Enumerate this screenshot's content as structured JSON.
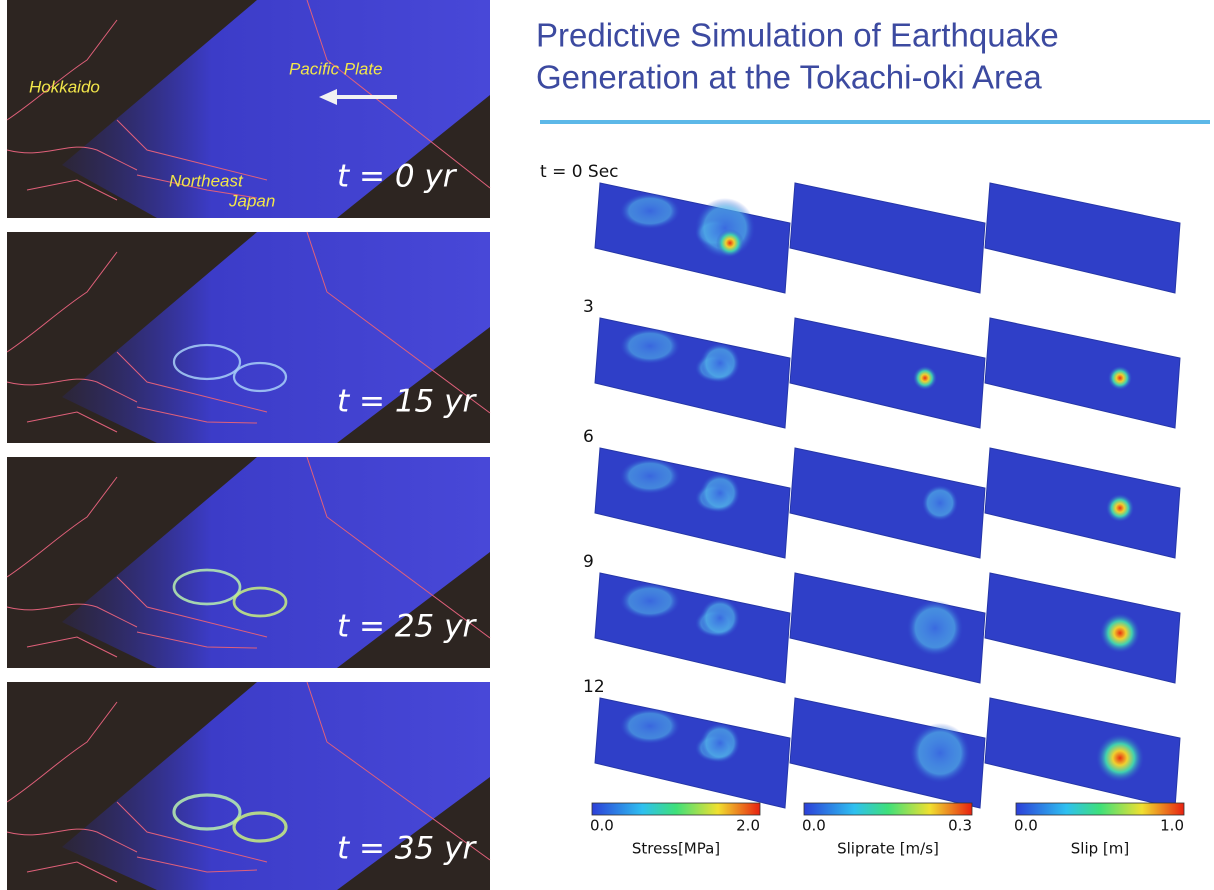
{
  "title": {
    "lines": [
      "Predictive Simulation of Earthquake",
      "Generation at the Tokachi-oki Area"
    ]
  },
  "map_labels": {
    "hokkaido": "Hokkaido",
    "pacific_plate": "Pacific Plate",
    "northeast_japan": [
      "Northeast",
      "Japan"
    ]
  },
  "left_panels": [
    {
      "label": "t = 0 yr"
    },
    {
      "label": "t = 15 yr"
    },
    {
      "label": "t = 25 yr"
    },
    {
      "label": "t = 35 yr"
    }
  ],
  "simulation": {
    "rows": [
      "t = 0 Sec",
      "3",
      "6",
      "9",
      "12"
    ]
  },
  "colorbars": [
    {
      "min": "0.0",
      "max": "2.0",
      "label": "Stress[MPa]"
    },
    {
      "min": "0.0",
      "max": "0.3",
      "label": "Sliprate [m/s]"
    },
    {
      "min": "0.0",
      "max": "1.0",
      "label": "Slip [m]"
    }
  ]
}
